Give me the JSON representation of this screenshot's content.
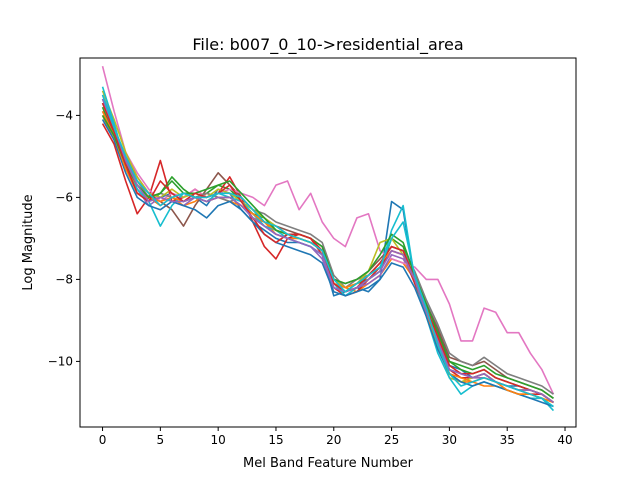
{
  "chart_data": {
    "type": "line",
    "title": "File: b007_0_10->residential_area",
    "xlabel": "Mel Band Feature Number",
    "ylabel": "Log Magnitude",
    "xlim": [
      -1.95,
      40.95
    ],
    "ylim": [
      -11.6,
      -2.6
    ],
    "xticks": [
      0,
      5,
      10,
      15,
      20,
      25,
      30,
      35,
      40
    ],
    "yticks": [
      -10,
      -8,
      -6,
      -4
    ],
    "xtick_labels": [
      "0",
      "5",
      "10",
      "15",
      "20",
      "25",
      "30",
      "35",
      "40"
    ],
    "ytick_labels": [
      "−10",
      "−8",
      "−6",
      "−4"
    ],
    "grid": false,
    "legend": "none",
    "x": [
      0,
      1,
      2,
      3,
      4,
      5,
      6,
      7,
      8,
      9,
      10,
      11,
      12,
      13,
      14,
      15,
      16,
      17,
      18,
      19,
      20,
      21,
      22,
      23,
      24,
      25,
      26,
      27,
      28,
      29,
      30,
      31,
      32,
      33,
      34,
      35,
      36,
      37,
      38,
      39
    ],
    "series": [
      {
        "color": "#1f77b4",
        "values": [
          -3.6,
          -4.3,
          -5.0,
          -5.6,
          -5.9,
          -6.0,
          -5.9,
          -6.1,
          -6.0,
          -6.2,
          -5.8,
          -5.9,
          -6.3,
          -6.6,
          -6.8,
          -7.0,
          -7.1,
          -7.1,
          -7.2,
          -7.4,
          -8.4,
          -8.3,
          -8.2,
          -8.3,
          -8.0,
          -6.1,
          -6.3,
          -8.1,
          -8.6,
          -9.2,
          -10.1,
          -10.2,
          -10.4,
          -10.3,
          -10.5,
          -10.6,
          -10.6,
          -10.7,
          -10.8,
          -11.0
        ]
      },
      {
        "color": "#ff7f0e",
        "values": [
          -4.0,
          -4.6,
          -5.3,
          -5.9,
          -6.0,
          -6.2,
          -6.0,
          -6.2,
          -6.1,
          -5.9,
          -6.0,
          -6.1,
          -6.2,
          -6.5,
          -6.6,
          -6.9,
          -7.0,
          -7.0,
          -7.1,
          -7.3,
          -8.0,
          -8.2,
          -8.3,
          -8.1,
          -7.9,
          -7.5,
          -7.6,
          -8.0,
          -8.7,
          -9.5,
          -10.3,
          -10.5,
          -10.5,
          -10.6,
          -10.6,
          -10.7,
          -10.8,
          -10.8,
          -10.9,
          -11.0
        ]
      },
      {
        "color": "#2ca02c",
        "values": [
          -3.8,
          -4.5,
          -5.1,
          -5.8,
          -6.1,
          -5.9,
          -5.5,
          -5.8,
          -6.0,
          -5.9,
          -5.7,
          -5.8,
          -6.1,
          -6.4,
          -6.5,
          -6.8,
          -6.9,
          -7.0,
          -7.1,
          -7.3,
          -8.1,
          -8.3,
          -8.1,
          -8.0,
          -7.8,
          -7.0,
          -7.2,
          -8.0,
          -8.8,
          -9.3,
          -10.0,
          -10.2,
          -10.3,
          -10.2,
          -10.4,
          -10.5,
          -10.6,
          -10.7,
          -10.8,
          -11.0
        ]
      },
      {
        "color": "#d62728",
        "values": [
          -4.2,
          -4.7,
          -5.6,
          -6.4,
          -6.0,
          -5.1,
          -6.1,
          -6.0,
          -5.8,
          -6.0,
          -5.9,
          -5.5,
          -6.0,
          -6.6,
          -7.2,
          -7.5,
          -7.0,
          -6.9,
          -7.0,
          -7.4,
          -8.2,
          -8.4,
          -8.3,
          -8.0,
          -7.7,
          -7.3,
          -7.4,
          -8.1,
          -8.8,
          -9.4,
          -10.2,
          -10.4,
          -10.4,
          -10.3,
          -10.5,
          -10.6,
          -10.7,
          -10.8,
          -10.8,
          -11.0
        ]
      },
      {
        "color": "#9467bd",
        "values": [
          -3.5,
          -4.2,
          -5.2,
          -5.8,
          -6.2,
          -6.0,
          -6.1,
          -6.2,
          -6.0,
          -6.1,
          -6.0,
          -6.0,
          -6.2,
          -6.5,
          -6.7,
          -6.9,
          -7.0,
          -7.1,
          -7.2,
          -7.5,
          -8.2,
          -8.3,
          -8.2,
          -8.1,
          -7.9,
          -7.4,
          -7.5,
          -8.0,
          -8.8,
          -9.6,
          -10.2,
          -10.3,
          -10.4,
          -10.4,
          -10.5,
          -10.6,
          -10.7,
          -10.7,
          -10.8,
          -11.0
        ]
      },
      {
        "color": "#8c564b",
        "values": [
          -3.9,
          -4.4,
          -5.0,
          -5.5,
          -5.9,
          -6.1,
          -6.3,
          -6.7,
          -6.2,
          -5.8,
          -5.4,
          -5.7,
          -6.0,
          -6.3,
          -6.6,
          -6.7,
          -6.8,
          -6.9,
          -7.0,
          -7.2,
          -8.0,
          -8.1,
          -8.0,
          -7.8,
          -7.5,
          -7.2,
          -7.3,
          -7.9,
          -8.6,
          -9.2,
          -9.9,
          -10.0,
          -10.1,
          -10.0,
          -10.2,
          -10.4,
          -10.5,
          -10.6,
          -10.7,
          -10.9
        ]
      },
      {
        "color": "#e377c2",
        "values": [
          -2.8,
          -3.9,
          -4.9,
          -5.4,
          -5.8,
          -6.1,
          -5.9,
          -6.0,
          -5.8,
          -6.0,
          -5.9,
          -5.8,
          -5.9,
          -6.0,
          -6.2,
          -5.7,
          -5.6,
          -6.3,
          -5.9,
          -6.6,
          -7.0,
          -7.2,
          -6.5,
          -6.4,
          -7.3,
          -7.5,
          -7.6,
          -7.7,
          -8.0,
          -8.0,
          -8.6,
          -9.5,
          -9.5,
          -8.7,
          -8.8,
          -9.3,
          -9.3,
          -9.8,
          -10.2,
          -10.8
        ]
      },
      {
        "color": "#7f7f7f",
        "values": [
          -3.7,
          -4.3,
          -5.1,
          -5.6,
          -6.0,
          -5.9,
          -6.0,
          -6.1,
          -6.0,
          -5.9,
          -6.0,
          -6.1,
          -6.0,
          -6.3,
          -6.4,
          -6.6,
          -6.7,
          -6.8,
          -6.9,
          -7.1,
          -7.9,
          -8.2,
          -8.0,
          -7.9,
          -7.6,
          -7.2,
          -7.3,
          -7.8,
          -8.5,
          -9.1,
          -9.8,
          -10.0,
          -10.1,
          -9.9,
          -10.1,
          -10.3,
          -10.4,
          -10.5,
          -10.6,
          -10.8
        ]
      },
      {
        "color": "#bcbd22",
        "values": [
          -3.4,
          -4.1,
          -4.9,
          -5.5,
          -5.9,
          -6.0,
          -5.8,
          -6.0,
          -5.9,
          -6.0,
          -5.8,
          -5.9,
          -6.1,
          -6.3,
          -6.5,
          -6.7,
          -6.9,
          -7.0,
          -7.1,
          -7.3,
          -8.0,
          -8.2,
          -8.1,
          -7.8,
          -7.1,
          -7.0,
          -7.4,
          -8.0,
          -8.7,
          -9.5,
          -10.4,
          -10.5,
          -10.4,
          -10.3,
          -10.5,
          -10.6,
          -10.7,
          -10.7,
          -10.8,
          -11.0
        ]
      },
      {
        "color": "#17becf",
        "values": [
          -3.3,
          -4.2,
          -5.2,
          -5.8,
          -6.1,
          -6.7,
          -6.2,
          -5.9,
          -6.0,
          -6.1,
          -5.9,
          -6.0,
          -6.1,
          -6.4,
          -6.7,
          -6.8,
          -7.0,
          -7.1,
          -7.2,
          -7.4,
          -8.1,
          -8.4,
          -8.2,
          -8.0,
          -7.8,
          -6.8,
          -6.2,
          -8.0,
          -8.9,
          -9.8,
          -10.4,
          -10.8,
          -10.6,
          -10.5,
          -10.6,
          -10.7,
          -10.8,
          -10.9,
          -10.9,
          -11.2
        ]
      },
      {
        "color": "#1f77b4",
        "values": [
          -4.1,
          -4.6,
          -5.4,
          -6.0,
          -6.2,
          -6.3,
          -6.1,
          -6.2,
          -6.3,
          -6.5,
          -6.2,
          -6.1,
          -6.3,
          -6.6,
          -6.9,
          -7.1,
          -7.2,
          -7.3,
          -7.4,
          -7.6,
          -8.3,
          -8.4,
          -8.3,
          -8.2,
          -8.0,
          -7.6,
          -7.7,
          -8.2,
          -8.9,
          -9.7,
          -10.3,
          -10.5,
          -10.6,
          -10.5,
          -10.6,
          -10.7,
          -10.8,
          -10.9,
          -11.0,
          -11.1
        ]
      },
      {
        "color": "#ff7f0e",
        "values": [
          -3.9,
          -4.5,
          -5.3,
          -5.7,
          -6.0,
          -6.1,
          -6.0,
          -6.1,
          -6.0,
          -6.1,
          -6.0,
          -6.0,
          -6.2,
          -6.4,
          -6.6,
          -6.8,
          -6.9,
          -7.0,
          -7.1,
          -7.3,
          -8.1,
          -8.2,
          -8.1,
          -7.9,
          -7.6,
          -7.3,
          -7.4,
          -8.0,
          -8.8,
          -9.6,
          -10.3,
          -10.4,
          -10.5,
          -10.4,
          -10.5,
          -10.7,
          -10.8,
          -10.8,
          -10.9,
          -11.0
        ]
      },
      {
        "color": "#2ca02c",
        "values": [
          -4.0,
          -4.5,
          -5.2,
          -5.7,
          -6.0,
          -5.9,
          -5.6,
          -5.9,
          -5.9,
          -5.8,
          -5.7,
          -5.6,
          -5.9,
          -6.2,
          -6.5,
          -6.8,
          -6.9,
          -6.9,
          -7.0,
          -7.2,
          -8.0,
          -8.1,
          -8.0,
          -7.8,
          -7.4,
          -6.9,
          -7.1,
          -7.9,
          -8.6,
          -9.3,
          -10.0,
          -10.1,
          -10.2,
          -10.1,
          -10.3,
          -10.4,
          -10.5,
          -10.6,
          -10.7,
          -10.9
        ]
      },
      {
        "color": "#d62728",
        "values": [
          -3.7,
          -4.4,
          -5.2,
          -5.9,
          -6.1,
          -5.6,
          -5.9,
          -6.1,
          -5.9,
          -6.0,
          -5.9,
          -5.7,
          -6.1,
          -6.5,
          -6.9,
          -7.1,
          -6.9,
          -6.9,
          -7.0,
          -7.3,
          -8.1,
          -8.3,
          -8.2,
          -7.9,
          -7.6,
          -7.2,
          -7.3,
          -8.0,
          -8.7,
          -9.4,
          -10.1,
          -10.3,
          -10.3,
          -10.2,
          -10.4,
          -10.5,
          -10.6,
          -10.7,
          -10.8,
          -11.0
        ]
      },
      {
        "color": "#9467bd",
        "values": [
          -3.6,
          -4.3,
          -5.1,
          -5.7,
          -6.1,
          -6.0,
          -6.1,
          -6.1,
          -6.0,
          -6.1,
          -6.0,
          -6.0,
          -6.2,
          -6.5,
          -6.7,
          -6.9,
          -7.0,
          -7.1,
          -7.2,
          -7.4,
          -8.2,
          -8.3,
          -8.2,
          -8.0,
          -7.8,
          -7.3,
          -7.4,
          -8.0,
          -8.8,
          -9.5,
          -10.2,
          -10.3,
          -10.4,
          -10.3,
          -10.5,
          -10.6,
          -10.7,
          -10.7,
          -10.8,
          -11.0
        ]
      },
      {
        "color": "#17becf",
        "values": [
          -3.5,
          -4.3,
          -5.0,
          -5.6,
          -5.9,
          -6.2,
          -6.0,
          -5.9,
          -6.0,
          -6.0,
          -5.9,
          -5.9,
          -6.0,
          -6.3,
          -6.6,
          -6.7,
          -6.9,
          -7.0,
          -7.1,
          -7.3,
          -8.0,
          -8.3,
          -8.1,
          -7.9,
          -7.7,
          -7.0,
          -6.6,
          -7.9,
          -8.7,
          -9.6,
          -10.3,
          -10.6,
          -10.5,
          -10.4,
          -10.5,
          -10.6,
          -10.7,
          -10.8,
          -10.9,
          -11.1
        ]
      }
    ]
  }
}
